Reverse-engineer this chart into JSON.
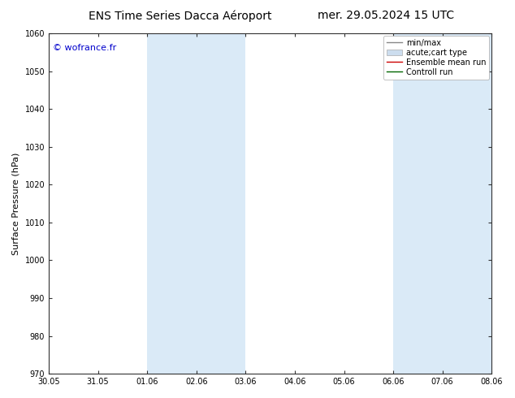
{
  "title_left": "ENS Time Series Dacca Aéroport",
  "title_right": "mer. 29.05.2024 15 UTC",
  "ylabel": "Surface Pressure (hPa)",
  "ylim": [
    970,
    1060
  ],
  "yticks": [
    970,
    980,
    990,
    1000,
    1010,
    1020,
    1030,
    1040,
    1050,
    1060
  ],
  "xtick_labels": [
    "30.05",
    "31.05",
    "01.06",
    "02.06",
    "03.06",
    "04.06",
    "05.06",
    "06.06",
    "07.06",
    "08.06"
  ],
  "xtick_positions": [
    0,
    1,
    2,
    3,
    4,
    5,
    6,
    7,
    8,
    9
  ],
  "shaded_bands": [
    {
      "x_start": 2,
      "x_end": 4
    },
    {
      "x_start": 7,
      "x_end": 9
    }
  ],
  "shade_color": "#daeaf7",
  "background_color": "#ffffff",
  "watermark_text": "© wofrance.fr",
  "watermark_color": "#0000cc",
  "legend_entries": [
    {
      "label": "min/max",
      "color": "#888888",
      "lw": 1.0,
      "patch": false
    },
    {
      "label": "acute;cart type",
      "color": "#ccddee",
      "lw": 6,
      "patch": true
    },
    {
      "label": "Ensemble mean run",
      "color": "#cc0000",
      "lw": 1.0,
      "patch": false
    },
    {
      "label": "Controll run",
      "color": "#006600",
      "lw": 1.0,
      "patch": false
    }
  ],
  "title_fontsize": 10,
  "tick_fontsize": 7,
  "ylabel_fontsize": 8,
  "legend_fontsize": 7
}
